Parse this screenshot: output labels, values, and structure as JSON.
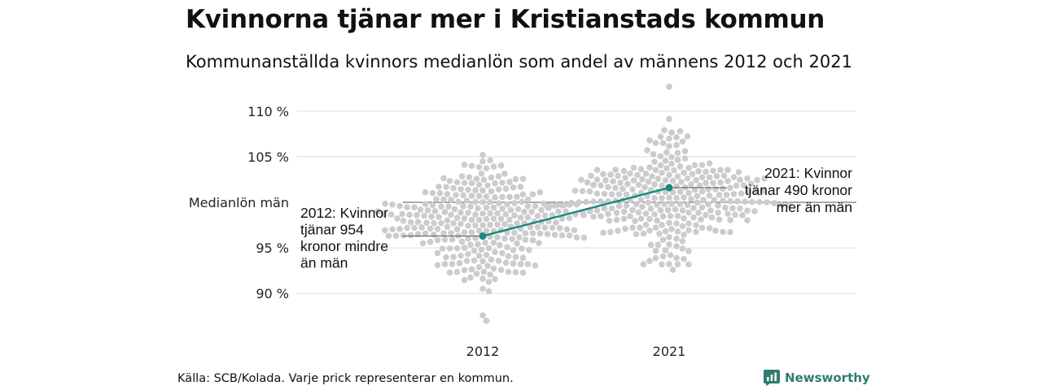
{
  "header": {
    "title": "Kvinnorna tjänar mer i Kristianstads kommun",
    "subtitle": "Kommunanställda kvinnors medianlön som andel av männens 2012 och 2021"
  },
  "footer": {
    "source": "Källa: SCB/Kolada. Varje prick representerar en kommun.",
    "brand": "Newsworthy"
  },
  "colors": {
    "dots": "#cccccc",
    "highlight": "#1a8a7e",
    "grid": "#dddddd",
    "brand": "#2e7d6f"
  },
  "chart_data": {
    "type": "scatter",
    "title": "Kvinnorna tjänar mer i Kristianstads kommun",
    "subtitle": "Kommunanställda kvinnors medianlön som andel av männens 2012 och 2021",
    "categories": [
      "2012",
      "2021"
    ],
    "ylim": [
      86,
      111
    ],
    "yticks": [
      {
        "value": 90,
        "label": "90 %"
      },
      {
        "value": 95,
        "label": "95 %"
      },
      {
        "value": 105,
        "label": "105 %"
      },
      {
        "value": 110,
        "label": "110 %"
      }
    ],
    "reference_line": {
      "value": 100,
      "label": "Medianlön män"
    },
    "highlight_series": {
      "x": [
        "2012",
        "2021"
      ],
      "y": [
        96.3,
        101.6
      ]
    },
    "distribution": {
      "2012": {
        "median": 97.5,
        "min": 87,
        "max": 105.2,
        "count": 290
      },
      "2021": {
        "median": 100.5,
        "min": 92.6,
        "max": 112.7,
        "count": 290
      }
    },
    "annotations": [
      {
        "x": "2012",
        "lines": [
          "2012: Kvinnor",
          "tjänar 954",
          "kronor mindre",
          "än män"
        ]
      },
      {
        "x": "2021",
        "lines": [
          "2021: Kvinnor",
          "tjänar 490 kronor",
          "mer än män"
        ]
      }
    ],
    "grid": true
  }
}
